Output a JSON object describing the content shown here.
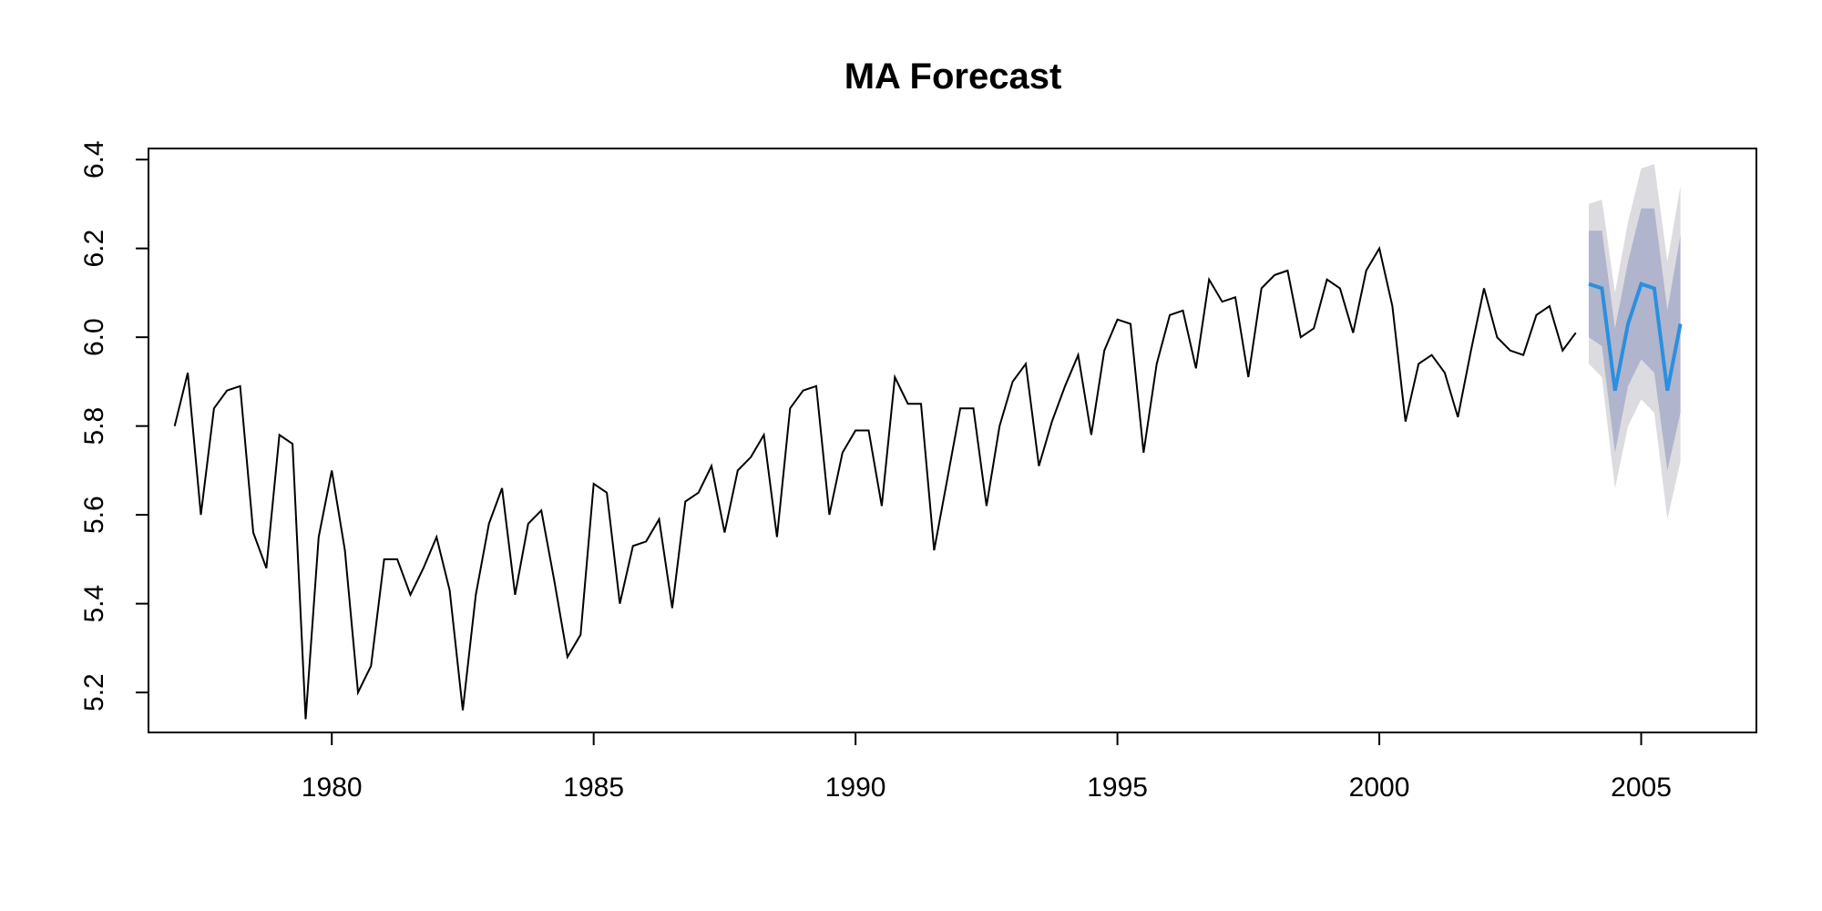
{
  "chart_data": {
    "type": "line",
    "title": "MA Forecast",
    "xlabel": "",
    "ylabel": "",
    "xlim": [
      1976.5,
      2007.2
    ],
    "ylim": [
      5.11,
      6.425
    ],
    "grid": false,
    "x_ticks": [
      1980,
      1985,
      1990,
      1995,
      2000,
      2005
    ],
    "x_tick_labels": [
      "1980",
      "1985",
      "1990",
      "1995",
      "2000",
      "2005"
    ],
    "y_ticks": [
      5.2,
      5.4,
      5.6,
      5.8,
      6.0,
      6.2,
      6.4
    ],
    "y_tick_labels": [
      "5.2",
      "5.4",
      "5.6",
      "5.8",
      "6.0",
      "6.2",
      "6.4"
    ],
    "series": [
      {
        "role": "observed",
        "color": "#000000",
        "start": 1977.0,
        "step": 0.25,
        "values": [
          5.8,
          5.92,
          5.6,
          5.84,
          5.88,
          5.89,
          5.56,
          5.48,
          5.78,
          5.76,
          5.14,
          5.55,
          5.7,
          5.52,
          5.2,
          5.26,
          5.5,
          5.5,
          5.42,
          5.48,
          5.55,
          5.43,
          5.16,
          5.42,
          5.58,
          5.66,
          5.42,
          5.58,
          5.61,
          5.45,
          5.28,
          5.33,
          5.67,
          5.65,
          5.4,
          5.53,
          5.54,
          5.59,
          5.39,
          5.63,
          5.65,
          5.71,
          5.56,
          5.7,
          5.73,
          5.78,
          5.55,
          5.84,
          5.88,
          5.89,
          5.6,
          5.74,
          5.79,
          5.79,
          5.62,
          5.91,
          5.85,
          5.85,
          5.52,
          5.68,
          5.84,
          5.84,
          5.62,
          5.8,
          5.9,
          5.94,
          5.71,
          5.81,
          5.89,
          5.96,
          5.78,
          5.97,
          6.04,
          6.03,
          5.74,
          5.94,
          6.05,
          6.06,
          5.93,
          6.13,
          6.08,
          6.09,
          5.91,
          6.11,
          6.14,
          6.15,
          6.0,
          6.02,
          6.13,
          6.11,
          6.01,
          6.15,
          6.2,
          6.07,
          5.81,
          5.94,
          5.96,
          5.92,
          5.82,
          5.97,
          6.11,
          6.0,
          5.97,
          5.96,
          6.05,
          6.07,
          5.97,
          6.01
        ]
      },
      {
        "role": "forecast",
        "color": "#2b8fde",
        "x": [
          2004.0,
          2004.25,
          2004.5,
          2004.75,
          2005.0,
          2005.25,
          2005.5,
          2005.75
        ],
        "values": [
          6.12,
          6.11,
          5.88,
          6.03,
          6.12,
          6.11,
          5.88,
          6.03
        ],
        "lower_80": [
          6.0,
          5.98,
          5.74,
          5.89,
          5.95,
          5.92,
          5.7,
          5.83
        ],
        "upper_80": [
          6.24,
          6.24,
          6.02,
          6.17,
          6.29,
          6.29,
          6.06,
          6.23
        ],
        "lower_95": [
          5.94,
          5.91,
          5.66,
          5.8,
          5.86,
          5.83,
          5.59,
          5.72
        ],
        "upper_95": [
          6.3,
          6.31,
          6.1,
          6.26,
          6.38,
          6.39,
          6.17,
          6.34
        ],
        "band_80_color": "#b0b4cc",
        "band_95_color": "#dcdce0"
      }
    ]
  }
}
